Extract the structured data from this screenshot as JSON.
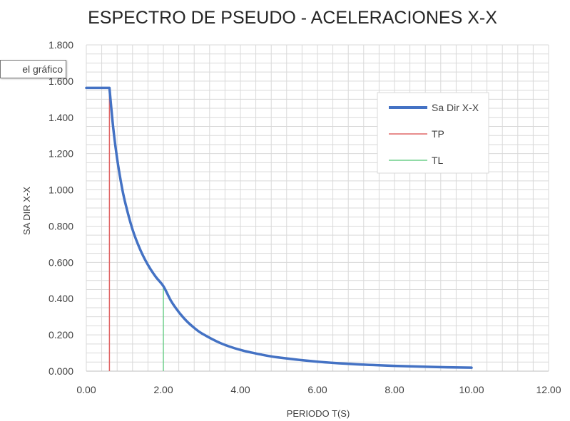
{
  "tooltip": {
    "text": "el gráfico"
  },
  "chart_data": {
    "type": "line",
    "title": "ESPECTRO DE PSEUDO - ACELERACIONES X-X",
    "xlabel": "PERIODO T(S)",
    "ylabel": "SA DIR X-X",
    "xlim": [
      0,
      12
    ],
    "ylim": [
      0,
      1.8
    ],
    "x_ticks": [
      0,
      2,
      4,
      6,
      8,
      10,
      12
    ],
    "x_tick_labels": [
      "0.00",
      "2.00",
      "4.00",
      "6.00",
      "8.00",
      "10.00",
      "12.00"
    ],
    "y_ticks": [
      0,
      0.2,
      0.4,
      0.6,
      0.8,
      1.0,
      1.2,
      1.4,
      1.6,
      1.8
    ],
    "y_tick_labels": [
      "0.000",
      "0.200",
      "0.400",
      "0.600",
      "0.800",
      "1.000",
      "1.200",
      "1.400",
      "1.600",
      "1.800"
    ],
    "grid": true,
    "legend_position": "right",
    "series": [
      {
        "name": "Sa Dir X-X",
        "color": "#4472c4",
        "kind": "curve",
        "points": [
          [
            0,
            1.5625
          ],
          [
            0.6,
            1.5625
          ],
          [
            0.7,
            1.339
          ],
          [
            0.8,
            1.172
          ],
          [
            0.9,
            1.042
          ],
          [
            1.0,
            0.938
          ],
          [
            1.2,
            0.781
          ],
          [
            1.4,
            0.67
          ],
          [
            1.6,
            0.586
          ],
          [
            1.8,
            0.521
          ],
          [
            2.0,
            0.469
          ],
          [
            2.2,
            0.387
          ],
          [
            2.4,
            0.326
          ],
          [
            2.6,
            0.277
          ],
          [
            2.8,
            0.239
          ],
          [
            3.0,
            0.208
          ],
          [
            3.5,
            0.153
          ],
          [
            4.0,
            0.117
          ],
          [
            4.5,
            0.093
          ],
          [
            5.0,
            0.075
          ],
          [
            6.0,
            0.052
          ],
          [
            7.0,
            0.038
          ],
          [
            8.0,
            0.029
          ],
          [
            9.0,
            0.023
          ],
          [
            10.0,
            0.019
          ]
        ]
      },
      {
        "name": "TP",
        "color": "#e06666",
        "kind": "vline",
        "x": 0.6,
        "y_range": [
          0,
          1.5625
        ]
      },
      {
        "name": "TL",
        "color": "#6dcf8a",
        "kind": "vline",
        "x": 2.0,
        "y_range": [
          0,
          0.469
        ]
      }
    ]
  }
}
